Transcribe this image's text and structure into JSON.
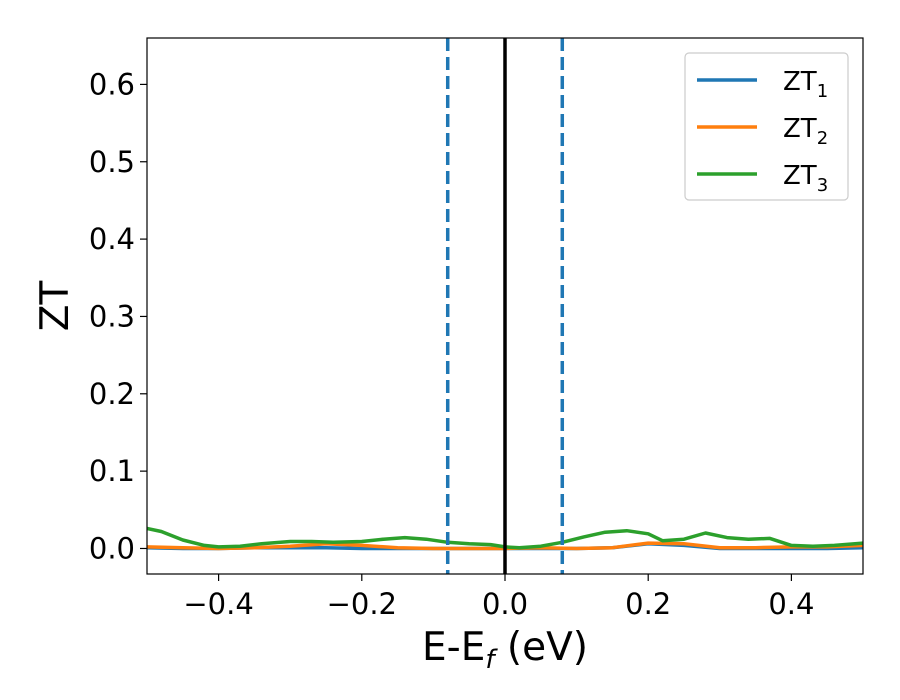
{
  "chart_data": {
    "type": "line",
    "xlabel": "E-E",
    "xlabel_sub": "f",
    "xlabel_unit": " (eV)",
    "ylabel": "ZT",
    "xlim": [
      -0.5,
      0.5
    ],
    "ylim": [
      -0.033,
      0.66
    ],
    "x_ticks": [
      -0.4,
      -0.2,
      0.0,
      0.2,
      0.4
    ],
    "x_tick_labels": [
      "−0.4",
      "−0.2",
      "0.0",
      "0.2",
      "0.4"
    ],
    "y_ticks": [
      0.0,
      0.1,
      0.2,
      0.3,
      0.4,
      0.5,
      0.6
    ],
    "y_tick_labels": [
      "0.0",
      "0.1",
      "0.2",
      "0.3",
      "0.4",
      "0.5",
      "0.6"
    ],
    "legend_position": "upper right",
    "grid": false,
    "vertical_lines": [
      {
        "x": -0.08,
        "style": "dashed",
        "color": "#1f77b4"
      },
      {
        "x": 0.0,
        "style": "solid",
        "color": "#000000"
      },
      {
        "x": 0.08,
        "style": "dashed",
        "color": "#1f77b4"
      }
    ],
    "series": [
      {
        "name": "ZT",
        "sub": "1",
        "color": "#1f77b4",
        "x": [
          -0.5,
          -0.45,
          -0.4,
          -0.35,
          -0.3,
          -0.25,
          -0.2,
          -0.15,
          -0.1,
          -0.05,
          0.0,
          0.05,
          0.1,
          0.15,
          0.2,
          0.25,
          0.3,
          0.35,
          0.4,
          0.45,
          0.5
        ],
        "y": [
          0.001,
          0.0,
          0.0,
          0.001,
          0.001,
          0.001,
          0.0,
          0.0,
          0.0,
          0.0,
          0.0,
          0.0,
          0.0,
          0.001,
          0.006,
          0.004,
          0.0,
          0.0,
          0.0,
          0.0,
          0.001
        ]
      },
      {
        "name": "ZT",
        "sub": "2",
        "color": "#ff7f0e",
        "x": [
          -0.5,
          -0.45,
          -0.4,
          -0.35,
          -0.3,
          -0.25,
          -0.2,
          -0.15,
          -0.1,
          -0.05,
          0.0,
          0.05,
          0.1,
          0.15,
          0.2,
          0.25,
          0.3,
          0.35,
          0.4,
          0.45,
          0.5
        ],
        "y": [
          0.002,
          0.001,
          0.0,
          0.001,
          0.003,
          0.006,
          0.004,
          0.001,
          0.0,
          0.0,
          0.0,
          0.001,
          0.0,
          0.001,
          0.007,
          0.006,
          0.001,
          0.001,
          0.002,
          0.002,
          0.004
        ]
      },
      {
        "name": "ZT",
        "sub": "3",
        "color": "#2ca02c",
        "x": [
          -0.5,
          -0.48,
          -0.45,
          -0.42,
          -0.4,
          -0.37,
          -0.34,
          -0.3,
          -0.27,
          -0.24,
          -0.2,
          -0.17,
          -0.14,
          -0.11,
          -0.08,
          -0.05,
          -0.02,
          0.0,
          0.02,
          0.05,
          0.08,
          0.11,
          0.14,
          0.17,
          0.2,
          0.22,
          0.25,
          0.28,
          0.31,
          0.34,
          0.37,
          0.4,
          0.43,
          0.46,
          0.5
        ],
        "y": [
          0.026,
          0.022,
          0.011,
          0.004,
          0.002,
          0.003,
          0.006,
          0.009,
          0.009,
          0.008,
          0.009,
          0.012,
          0.014,
          0.012,
          0.008,
          0.006,
          0.005,
          0.002,
          0.001,
          0.003,
          0.008,
          0.015,
          0.021,
          0.023,
          0.019,
          0.01,
          0.012,
          0.02,
          0.014,
          0.012,
          0.013,
          0.004,
          0.003,
          0.004,
          0.007
        ]
      }
    ]
  }
}
